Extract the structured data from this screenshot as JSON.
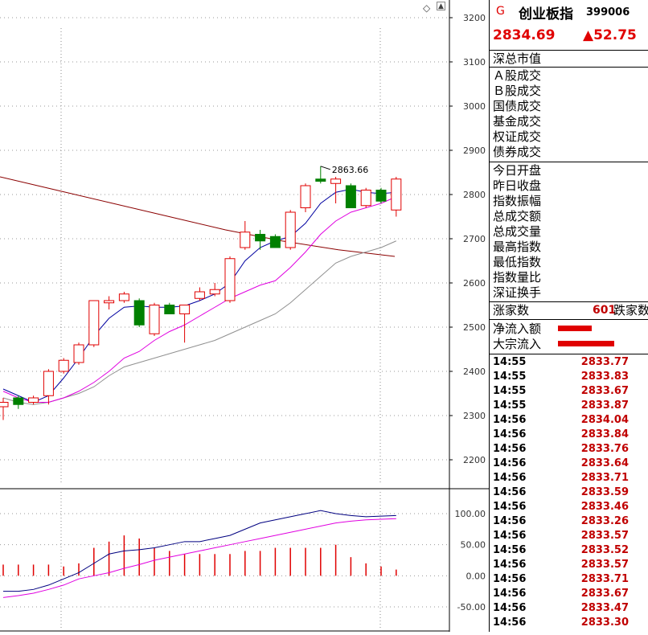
{
  "header": {
    "code_marker": "G",
    "title": "创业板指",
    "code": "399006",
    "price": "2834.69",
    "change": "▲52.75"
  },
  "sections": {
    "market_value": "深总市值",
    "turnover": [
      "Ａ股成交",
      "Ｂ股成交",
      "国债成交",
      "基金成交",
      "权证成交",
      "债券成交"
    ],
    "stats": [
      "今日开盘",
      "昨日收盘",
      "指数振幅",
      "总成交额",
      "总成交量",
      "最高指数",
      "最低指数",
      "指数量比",
      "深证换手"
    ],
    "breadth": {
      "up_label": "涨家数",
      "up_value": "601",
      "down_label": "跌家数"
    },
    "flows": [
      {
        "label": "净流入额",
        "bar_fraction": 0.6
      },
      {
        "label": "大宗流入",
        "bar_fraction": 1.0
      }
    ]
  },
  "ticks": [
    {
      "time": "14:55",
      "price": "2833.77"
    },
    {
      "time": "14:55",
      "price": "2833.83"
    },
    {
      "time": "14:55",
      "price": "2833.67"
    },
    {
      "time": "14:55",
      "price": "2833.87"
    },
    {
      "time": "14:56",
      "price": "2834.04"
    },
    {
      "time": "14:56",
      "price": "2833.84"
    },
    {
      "time": "14:56",
      "price": "2833.76"
    },
    {
      "time": "14:56",
      "price": "2833.64"
    },
    {
      "time": "14:56",
      "price": "2833.71"
    },
    {
      "time": "14:56",
      "price": "2833.59"
    },
    {
      "time": "14:56",
      "price": "2833.46"
    },
    {
      "time": "14:56",
      "price": "2833.26"
    },
    {
      "time": "14:56",
      "price": "2833.57"
    },
    {
      "time": "14:56",
      "price": "2833.52"
    },
    {
      "time": "14:56",
      "price": "2833.57"
    },
    {
      "time": "14:56",
      "price": "2833.71"
    },
    {
      "time": "14:56",
      "price": "2833.67"
    },
    {
      "time": "14:56",
      "price": "2833.47"
    },
    {
      "time": "14:56",
      "price": "2833.30"
    }
  ],
  "chart_data": {
    "type": "candlestick",
    "y_ticks": [
      2200,
      2300,
      2400,
      2500,
      2600,
      2700,
      2800,
      2900,
      3000,
      3100,
      3200
    ],
    "ylim": [
      2140,
      3240
    ],
    "high_annotation": "2863.66",
    "colors": {
      "up": "#e00000",
      "down": "#008000",
      "ma_long": "#8b0000",
      "ma_short": "#0000a0",
      "ma_mid": "#e000e0",
      "ma_slow": "#909090"
    },
    "candles": [
      {
        "o": 2320,
        "h": 2340,
        "l": 2290,
        "c": 2330
      },
      {
        "o": 2340,
        "h": 2345,
        "l": 2315,
        "c": 2325
      },
      {
        "o": 2330,
        "h": 2345,
        "l": 2325,
        "c": 2340
      },
      {
        "o": 2345,
        "h": 2405,
        "l": 2325,
        "c": 2400
      },
      {
        "o": 2400,
        "h": 2430,
        "l": 2395,
        "c": 2425
      },
      {
        "o": 2420,
        "h": 2465,
        "l": 2415,
        "c": 2460
      },
      {
        "o": 2460,
        "h": 2560,
        "l": 2455,
        "c": 2560
      },
      {
        "o": 2555,
        "h": 2570,
        "l": 2540,
        "c": 2560
      },
      {
        "o": 2560,
        "h": 2580,
        "l": 2555,
        "c": 2575
      },
      {
        "o": 2560,
        "h": 2565,
        "l": 2500,
        "c": 2505
      },
      {
        "o": 2485,
        "h": 2555,
        "l": 2480,
        "c": 2550
      },
      {
        "o": 2550,
        "h": 2555,
        "l": 2530,
        "c": 2530
      },
      {
        "o": 2530,
        "h": 2550,
        "l": 2465,
        "c": 2550
      },
      {
        "o": 2565,
        "h": 2590,
        "l": 2560,
        "c": 2580
      },
      {
        "o": 2575,
        "h": 2600,
        "l": 2570,
        "c": 2585
      },
      {
        "o": 2560,
        "h": 2660,
        "l": 2555,
        "c": 2655
      },
      {
        "o": 2680,
        "h": 2740,
        "l": 2675,
        "c": 2715
      },
      {
        "o": 2710,
        "h": 2720,
        "l": 2675,
        "c": 2695
      },
      {
        "o": 2705,
        "h": 2710,
        "l": 2680,
        "c": 2680
      },
      {
        "o": 2680,
        "h": 2765,
        "l": 2675,
        "c": 2760
      },
      {
        "o": 2770,
        "h": 2825,
        "l": 2760,
        "c": 2820
      },
      {
        "o": 2835,
        "h": 2864,
        "l": 2825,
        "c": 2830
      },
      {
        "o": 2825,
        "h": 2840,
        "l": 2780,
        "c": 2835
      },
      {
        "o": 2820,
        "h": 2825,
        "l": 2770,
        "c": 2770
      },
      {
        "o": 2775,
        "h": 2815,
        "l": 2770,
        "c": 2810
      },
      {
        "o": 2810,
        "h": 2815,
        "l": 2780,
        "c": 2785
      },
      {
        "o": 2765,
        "h": 2840,
        "l": 2750,
        "c": 2835
      }
    ],
    "ma_long": [
      2840,
      2810,
      2780,
      2750,
      2720,
      2695,
      2675,
      2660
    ],
    "ma_short": [
      2360,
      2345,
      2330,
      2345,
      2385,
      2430,
      2480,
      2520,
      2545,
      2548,
      2545,
      2545,
      2548,
      2560,
      2575,
      2600,
      2650,
      2680,
      2695,
      2705,
      2735,
      2780,
      2805,
      2812,
      2805,
      2802,
      2805
    ],
    "ma_mid": [
      2355,
      2340,
      2330,
      2330,
      2340,
      2355,
      2375,
      2400,
      2430,
      2445,
      2470,
      2490,
      2505,
      2525,
      2545,
      2565,
      2580,
      2595,
      2605,
      2635,
      2670,
      2710,
      2740,
      2760,
      2770,
      2780,
      2795
    ],
    "ma_slow": [
      2340,
      2330,
      2325,
      2330,
      2340,
      2350,
      2365,
      2390,
      2410,
      2420,
      2430,
      2440,
      2450,
      2460,
      2470,
      2485,
      2500,
      2515,
      2530,
      2555,
      2585,
      2615,
      2645,
      2660,
      2670,
      2680,
      2695
    ],
    "indicator": {
      "y_ticks": [
        100.0,
        50.0,
        0.0,
        -50.0
      ],
      "ylim": [
        -85,
        135
      ],
      "bars": [
        18,
        18,
        18,
        18,
        15,
        20,
        45,
        55,
        65,
        60,
        45,
        40,
        35,
        35,
        35,
        35,
        40,
        40,
        45,
        45,
        45,
        45,
        50,
        30,
        20,
        15,
        10
      ],
      "line1": [
        -25,
        -25,
        -22,
        -15,
        -5,
        5,
        20,
        35,
        40,
        42,
        45,
        50,
        55,
        55,
        60,
        65,
        75,
        85,
        90,
        95,
        100,
        105,
        100,
        97,
        95,
        96,
        97
      ],
      "line2": [
        -35,
        -32,
        -28,
        -22,
        -15,
        -5,
        0,
        5,
        12,
        18,
        25,
        30,
        35,
        40,
        45,
        50,
        55,
        60,
        65,
        70,
        75,
        80,
        85,
        88,
        90,
        91,
        92
      ]
    }
  }
}
